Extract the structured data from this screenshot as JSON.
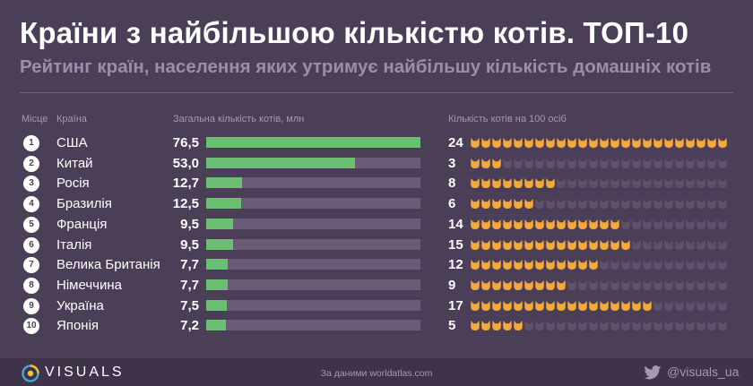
{
  "title": "Країни з найбільшою кількістю котів. ТОП-10",
  "subtitle": "Рейтинг країн, населення яких утримує найбільшу кількість домашніх котів",
  "headers": {
    "rank": "Місце",
    "country": "Країна",
    "total": "Загальна кількість котів, млн",
    "per100": "Кількість котів на 100 осіб"
  },
  "chart_data": {
    "type": "bar",
    "categories": [
      "США",
      "Китай",
      "Росія",
      "Бразилія",
      "Франція",
      "Італія",
      "Велика Британія",
      "Німеччина",
      "Україна",
      "Японія"
    ],
    "ranks": [
      "1",
      "2",
      "3",
      "4",
      "5",
      "6",
      "7",
      "8",
      "9",
      "10"
    ],
    "total_labels": [
      "76,5",
      "53,0",
      "12,7",
      "12,5",
      "9,5",
      "9,5",
      "7,7",
      "7,7",
      "7,5",
      "7,2"
    ],
    "values": [
      76.5,
      53.0,
      12.7,
      12.5,
      9.5,
      9.5,
      7.7,
      7.7,
      7.5,
      7.2
    ],
    "xmax": 76.5,
    "per100_labels": [
      "24",
      "3",
      "8",
      "6",
      "14",
      "15",
      "12",
      "9",
      "17",
      "5"
    ],
    "per100": [
      24,
      3,
      8,
      6,
      14,
      15,
      12,
      9,
      17,
      5
    ],
    "cat_icon_slots": 24
  },
  "colors": {
    "background": "#4b3e57",
    "bar": "#6bbf72",
    "track": "#6a5c76",
    "cat_on": "#f4a93a",
    "cat_off": "#5f516b"
  },
  "footer": {
    "brand": "VISUALS",
    "source": "За даними worldatlas.com",
    "handle": "@visuals_ua",
    "logo_icon": "visuals-logo-icon",
    "twitter_icon": "twitter-bird-icon"
  }
}
